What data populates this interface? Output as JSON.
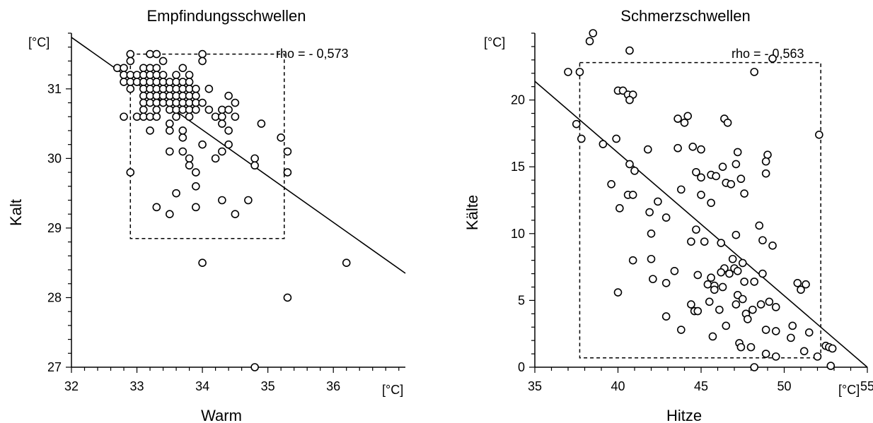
{
  "chart_data": [
    {
      "type": "scatter",
      "title": "Empfindungsschwellen",
      "xlabel": "Warm",
      "ylabel": "Kalt",
      "x_unit": "[°C]",
      "y_unit": "[°C]",
      "annotation": "rho = - 0,573",
      "xlim": [
        32,
        37.1
      ],
      "ylim": [
        27,
        31.8
      ],
      "xticks": [
        32,
        33,
        34,
        35,
        36
      ],
      "yticks": [
        27,
        28,
        29,
        30,
        31
      ],
      "regression_line": [
        [
          32,
          31.74
        ],
        [
          37.1,
          28.35
        ]
      ],
      "dashed_box": {
        "x": [
          32.9,
          35.25
        ],
        "y": [
          28.85,
          31.5
        ]
      },
      "grid": false,
      "marker": "open-circle",
      "points": [
        [
          32.9,
          31.5
        ],
        [
          33.2,
          31.5
        ],
        [
          33.3,
          31.5
        ],
        [
          34.0,
          31.5
        ],
        [
          32.9,
          31.4
        ],
        [
          33.4,
          31.4
        ],
        [
          34.0,
          31.4
        ],
        [
          32.7,
          31.3
        ],
        [
          32.8,
          31.3
        ],
        [
          33.1,
          31.3
        ],
        [
          33.2,
          31.3
        ],
        [
          33.3,
          31.3
        ],
        [
          33.7,
          31.3
        ],
        [
          32.8,
          31.2
        ],
        [
          32.9,
          31.2
        ],
        [
          33.0,
          31.2
        ],
        [
          33.1,
          31.2
        ],
        [
          33.2,
          31.2
        ],
        [
          33.3,
          31.2
        ],
        [
          33.4,
          31.2
        ],
        [
          33.6,
          31.2
        ],
        [
          33.8,
          31.2
        ],
        [
          32.8,
          31.1
        ],
        [
          32.9,
          31.1
        ],
        [
          33.0,
          31.1
        ],
        [
          33.1,
          31.1
        ],
        [
          33.2,
          31.1
        ],
        [
          33.3,
          31.1
        ],
        [
          33.4,
          31.1
        ],
        [
          33.5,
          31.1
        ],
        [
          33.6,
          31.1
        ],
        [
          33.7,
          31.1
        ],
        [
          33.8,
          31.1
        ],
        [
          32.9,
          31.0
        ],
        [
          33.1,
          31.0
        ],
        [
          33.2,
          31.0
        ],
        [
          33.3,
          31.0
        ],
        [
          33.4,
          31.0
        ],
        [
          33.5,
          31.0
        ],
        [
          33.6,
          31.0
        ],
        [
          33.7,
          31.0
        ],
        [
          33.8,
          31.0
        ],
        [
          33.9,
          31.0
        ],
        [
          34.1,
          31.0
        ],
        [
          33.1,
          30.9
        ],
        [
          33.2,
          30.9
        ],
        [
          33.3,
          30.9
        ],
        [
          33.4,
          30.9
        ],
        [
          33.5,
          30.9
        ],
        [
          33.6,
          30.9
        ],
        [
          33.7,
          30.9
        ],
        [
          33.8,
          30.9
        ],
        [
          33.9,
          30.9
        ],
        [
          34.4,
          30.9
        ],
        [
          33.1,
          30.8
        ],
        [
          33.2,
          30.8
        ],
        [
          33.3,
          30.8
        ],
        [
          33.4,
          30.8
        ],
        [
          33.5,
          30.8
        ],
        [
          33.6,
          30.8
        ],
        [
          33.7,
          30.8
        ],
        [
          33.8,
          30.8
        ],
        [
          33.9,
          30.8
        ],
        [
          34.0,
          30.8
        ],
        [
          34.5,
          30.8
        ],
        [
          33.1,
          30.7
        ],
        [
          33.3,
          30.7
        ],
        [
          33.5,
          30.7
        ],
        [
          33.6,
          30.7
        ],
        [
          33.7,
          30.7
        ],
        [
          33.8,
          30.7
        ],
        [
          33.9,
          30.7
        ],
        [
          34.1,
          30.7
        ],
        [
          34.3,
          30.7
        ],
        [
          34.4,
          30.7
        ],
        [
          32.8,
          30.6
        ],
        [
          33.0,
          30.6
        ],
        [
          33.1,
          30.6
        ],
        [
          33.2,
          30.6
        ],
        [
          33.3,
          30.6
        ],
        [
          33.6,
          30.6
        ],
        [
          33.8,
          30.6
        ],
        [
          34.2,
          30.6
        ],
        [
          34.3,
          30.6
        ],
        [
          34.5,
          30.6
        ],
        [
          33.5,
          30.5
        ],
        [
          34.3,
          30.5
        ],
        [
          34.9,
          30.5
        ],
        [
          33.2,
          30.4
        ],
        [
          33.5,
          30.4
        ],
        [
          33.7,
          30.4
        ],
        [
          34.4,
          30.4
        ],
        [
          33.7,
          30.3
        ],
        [
          35.2,
          30.3
        ],
        [
          34.0,
          30.2
        ],
        [
          34.4,
          30.2
        ],
        [
          33.5,
          30.1
        ],
        [
          33.7,
          30.1
        ],
        [
          34.3,
          30.1
        ],
        [
          35.3,
          30.1
        ],
        [
          33.8,
          30.0
        ],
        [
          34.2,
          30.0
        ],
        [
          34.8,
          30.0
        ],
        [
          33.8,
          29.9
        ],
        [
          34.8,
          29.9
        ],
        [
          32.9,
          29.8
        ],
        [
          33.9,
          29.8
        ],
        [
          35.3,
          29.8
        ],
        [
          33.9,
          29.6
        ],
        [
          33.6,
          29.5
        ],
        [
          34.3,
          29.4
        ],
        [
          34.7,
          29.4
        ],
        [
          33.3,
          29.3
        ],
        [
          33.9,
          29.3
        ],
        [
          33.5,
          29.2
        ],
        [
          34.5,
          29.2
        ],
        [
          34.0,
          28.5
        ],
        [
          36.2,
          28.5
        ],
        [
          35.3,
          28.0
        ],
        [
          34.8,
          27.0
        ]
      ]
    },
    {
      "type": "scatter",
      "title": "Schmerzschwellen",
      "xlabel": "Hitze",
      "ylabel": "Kälte",
      "x_unit": "[°C]",
      "y_unit": "[°C]",
      "annotation": "rho = - 0,563",
      "xlim": [
        35,
        55
      ],
      "ylim": [
        0,
        25
      ],
      "xticks": [
        35,
        40,
        45,
        50,
        55
      ],
      "yticks": [
        0,
        5,
        10,
        15,
        20
      ],
      "regression_line": [
        [
          35,
          21.4
        ],
        [
          55,
          0
        ]
      ],
      "dashed_box": {
        "x": [
          37.7,
          52.2
        ],
        "y": [
          0.7,
          22.8
        ]
      },
      "grid": false,
      "marker": "open-circle",
      "points": [
        [
          38.5,
          25.0
        ],
        [
          38.3,
          24.4
        ],
        [
          40.7,
          23.7
        ],
        [
          49.3,
          23.1
        ],
        [
          37.0,
          22.1
        ],
        [
          37.7,
          22.1
        ],
        [
          48.2,
          22.1
        ],
        [
          40.0,
          20.7
        ],
        [
          40.3,
          20.7
        ],
        [
          40.6,
          20.4
        ],
        [
          40.9,
          20.4
        ],
        [
          40.7,
          20.0
        ],
        [
          37.5,
          18.2
        ],
        [
          43.6,
          18.6
        ],
        [
          44.2,
          18.8
        ],
        [
          44.0,
          18.3
        ],
        [
          46.4,
          18.6
        ],
        [
          46.6,
          18.3
        ],
        [
          37.8,
          17.1
        ],
        [
          39.9,
          17.1
        ],
        [
          52.1,
          17.4
        ],
        [
          39.1,
          16.7
        ],
        [
          41.8,
          16.3
        ],
        [
          43.6,
          16.4
        ],
        [
          44.5,
          16.5
        ],
        [
          45.0,
          16.3
        ],
        [
          47.2,
          16.1
        ],
        [
          49.0,
          15.9
        ],
        [
          40.7,
          15.2
        ],
        [
          46.3,
          15.0
        ],
        [
          47.1,
          15.2
        ],
        [
          48.9,
          15.4
        ],
        [
          41.0,
          14.7
        ],
        [
          44.7,
          14.6
        ],
        [
          45.0,
          14.2
        ],
        [
          45.6,
          14.4
        ],
        [
          45.9,
          14.3
        ],
        [
          47.4,
          14.1
        ],
        [
          48.9,
          14.5
        ],
        [
          39.6,
          13.7
        ],
        [
          46.5,
          13.8
        ],
        [
          46.8,
          13.7
        ],
        [
          43.8,
          13.3
        ],
        [
          47.6,
          13.0
        ],
        [
          40.6,
          12.9
        ],
        [
          40.9,
          12.9
        ],
        [
          45.0,
          12.9
        ],
        [
          42.4,
          12.4
        ],
        [
          45.6,
          12.3
        ],
        [
          40.1,
          11.9
        ],
        [
          41.9,
          11.6
        ],
        [
          42.9,
          11.2
        ],
        [
          44.7,
          10.3
        ],
        [
          42.0,
          10.0
        ],
        [
          47.1,
          9.9
        ],
        [
          48.5,
          10.6
        ],
        [
          44.4,
          9.4
        ],
        [
          45.2,
          9.4
        ],
        [
          46.2,
          9.3
        ],
        [
          48.7,
          9.5
        ],
        [
          49.3,
          9.1
        ],
        [
          42.0,
          8.1
        ],
        [
          40.9,
          8.0
        ],
        [
          46.9,
          8.1
        ],
        [
          47.5,
          7.8
        ],
        [
          47.0,
          7.4
        ],
        [
          43.4,
          7.2
        ],
        [
          44.8,
          6.9
        ],
        [
          45.6,
          6.7
        ],
        [
          46.4,
          7.4
        ],
        [
          46.2,
          7.1
        ],
        [
          46.7,
          7.0
        ],
        [
          47.2,
          7.2
        ],
        [
          48.7,
          7.0
        ],
        [
          42.1,
          6.6
        ],
        [
          42.9,
          6.3
        ],
        [
          45.4,
          6.2
        ],
        [
          45.8,
          6.1
        ],
        [
          46.3,
          6.0
        ],
        [
          47.6,
          6.4
        ],
        [
          48.2,
          6.4
        ],
        [
          50.8,
          6.3
        ],
        [
          40.0,
          5.6
        ],
        [
          45.8,
          5.8
        ],
        [
          47.2,
          5.4
        ],
        [
          47.5,
          5.1
        ],
        [
          51.0,
          5.8
        ],
        [
          51.3,
          6.2
        ],
        [
          44.4,
          4.7
        ],
        [
          45.5,
          4.9
        ],
        [
          47.1,
          4.7
        ],
        [
          48.6,
          4.7
        ],
        [
          49.1,
          4.9
        ],
        [
          49.5,
          4.5
        ],
        [
          44.6,
          4.2
        ],
        [
          44.8,
          4.2
        ],
        [
          46.1,
          4.3
        ],
        [
          47.7,
          4.0
        ],
        [
          48.1,
          4.3
        ],
        [
          42.9,
          3.8
        ],
        [
          47.8,
          3.6
        ],
        [
          50.5,
          3.1
        ],
        [
          43.8,
          2.8
        ],
        [
          46.5,
          3.1
        ],
        [
          48.9,
          2.8
        ],
        [
          49.5,
          2.7
        ],
        [
          51.5,
          2.6
        ],
        [
          45.7,
          2.3
        ],
        [
          47.3,
          1.8
        ],
        [
          47.4,
          1.5
        ],
        [
          48.0,
          1.5
        ],
        [
          50.4,
          2.2
        ],
        [
          52.5,
          1.6
        ],
        [
          52.7,
          1.5
        ],
        [
          48.9,
          1.0
        ],
        [
          49.5,
          0.8
        ],
        [
          51.2,
          1.2
        ],
        [
          52.0,
          0.8
        ],
        [
          52.9,
          1.4
        ],
        [
          48.2,
          0.0
        ],
        [
          52.8,
          0.1
        ]
      ]
    }
  ]
}
